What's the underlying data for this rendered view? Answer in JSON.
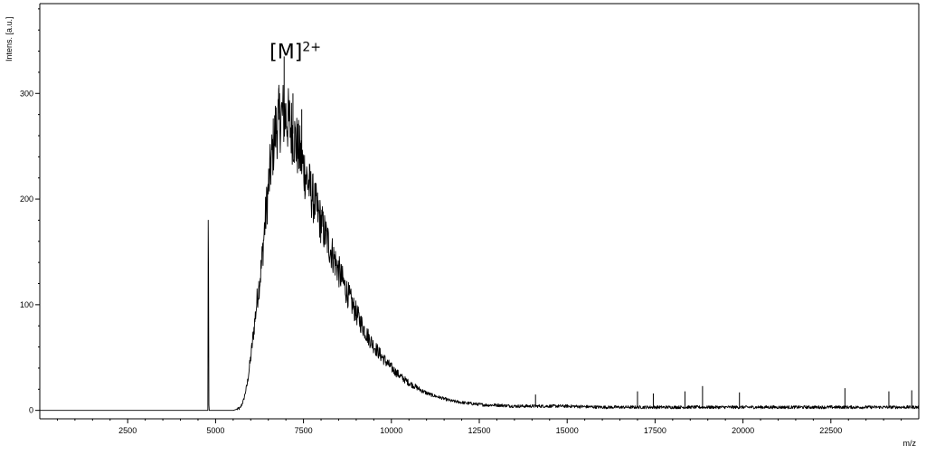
{
  "chart_data": {
    "type": "line",
    "title": "",
    "xlabel": "m/z",
    "ylabel": "Intens. [a.u.]",
    "xlim": [
      0,
      25000
    ],
    "ylim": [
      -8,
      385
    ],
    "x_ticks": [
      2500,
      5000,
      7500,
      10000,
      12500,
      15000,
      17500,
      20000,
      22500
    ],
    "x_tick_labels": [
      "2500",
      "5000",
      "7500",
      "10000",
      "12500",
      "15000",
      "17500",
      "20000",
      "22500"
    ],
    "y_ticks": [
      0,
      100,
      200,
      300
    ],
    "y_tick_labels": [
      "0",
      "100",
      "200",
      "300"
    ],
    "grid": false,
    "annotation": {
      "text": "[M]",
      "superscript": "2+",
      "x": 7000,
      "y": 335
    },
    "series": [
      {
        "color": "#000000",
        "x": [
          0,
          4700,
          4780,
          4790,
          4800,
          4810,
          4820,
          5500,
          5700,
          5800,
          5900,
          6000,
          6100,
          6200,
          6300,
          6400,
          6500,
          6600,
          6700,
          6800,
          6900,
          7000,
          7100,
          7200,
          7300,
          7400,
          7500,
          7700,
          7900,
          8100,
          8300,
          8500,
          8700,
          8900,
          9100,
          9300,
          9500,
          9700,
          9900,
          10100,
          10300,
          10500,
          10700,
          10900,
          11100,
          11300,
          11500,
          11700,
          11900,
          12100,
          12400,
          12700,
          13000,
          13500,
          14000,
          14500,
          15000,
          16000,
          17000,
          18000,
          19000,
          20000,
          21000,
          22000,
          23000,
          24000,
          25000
        ],
        "y": [
          0,
          0,
          0,
          180,
          130,
          5,
          0,
          0,
          2,
          10,
          25,
          50,
          80,
          110,
          135,
          175,
          210,
          240,
          265,
          275,
          280,
          278,
          272,
          262,
          252,
          242,
          230,
          208,
          188,
          168,
          150,
          132,
          115,
          99,
          85,
          72,
          61,
          52,
          44,
          37,
          31,
          26,
          22,
          18,
          15,
          13,
          11,
          9,
          8,
          7,
          6,
          5,
          5,
          4,
          4,
          4,
          4,
          3,
          3,
          3,
          3,
          3,
          3,
          3,
          3,
          3,
          3
        ],
        "spikes": [
          {
            "x": 6950,
            "y": 335
          },
          {
            "x": 6800,
            "y": 305
          },
          {
            "x": 7200,
            "y": 300
          },
          {
            "x": 7450,
            "y": 285
          },
          {
            "x": 14100,
            "y": 15
          },
          {
            "x": 17000,
            "y": 18
          },
          {
            "x": 17450,
            "y": 16
          },
          {
            "x": 18350,
            "y": 18
          },
          {
            "x": 18850,
            "y": 23
          },
          {
            "x": 19900,
            "y": 17
          },
          {
            "x": 22900,
            "y": 21
          },
          {
            "x": 24150,
            "y": 18
          },
          {
            "x": 24800,
            "y": 19
          }
        ]
      }
    ]
  }
}
